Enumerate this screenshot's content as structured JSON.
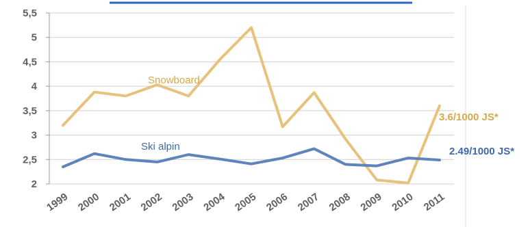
{
  "chart_data": {
    "type": "line",
    "categories": [
      "1999",
      "2000",
      "2001",
      "2002",
      "2003",
      "2004",
      "2005",
      "2006",
      "2007",
      "2008",
      "2009",
      "2010",
      "2011"
    ],
    "ylim": [
      2,
      5.5
    ],
    "yticks": [
      "2",
      "2,5",
      "3",
      "3,5",
      "4",
      "4,5",
      "5",
      "5,5"
    ],
    "grid": "horizontal",
    "series": [
      {
        "name": "Snowboard",
        "color": "#e8c27c",
        "values": [
          3.2,
          3.88,
          3.8,
          4.03,
          3.8,
          4.55,
          5.2,
          3.17,
          3.87,
          2.92,
          2.08,
          2.02,
          3.6
        ],
        "end_label": "3.6/1000 JS*"
      },
      {
        "name": "Ski alpin",
        "color": "#5f83bd",
        "values": [
          2.35,
          2.62,
          2.5,
          2.45,
          2.6,
          2.51,
          2.41,
          2.53,
          2.72,
          2.4,
          2.37,
          2.53,
          2.49
        ],
        "end_label": "2.49/1000 JS*"
      }
    ]
  }
}
